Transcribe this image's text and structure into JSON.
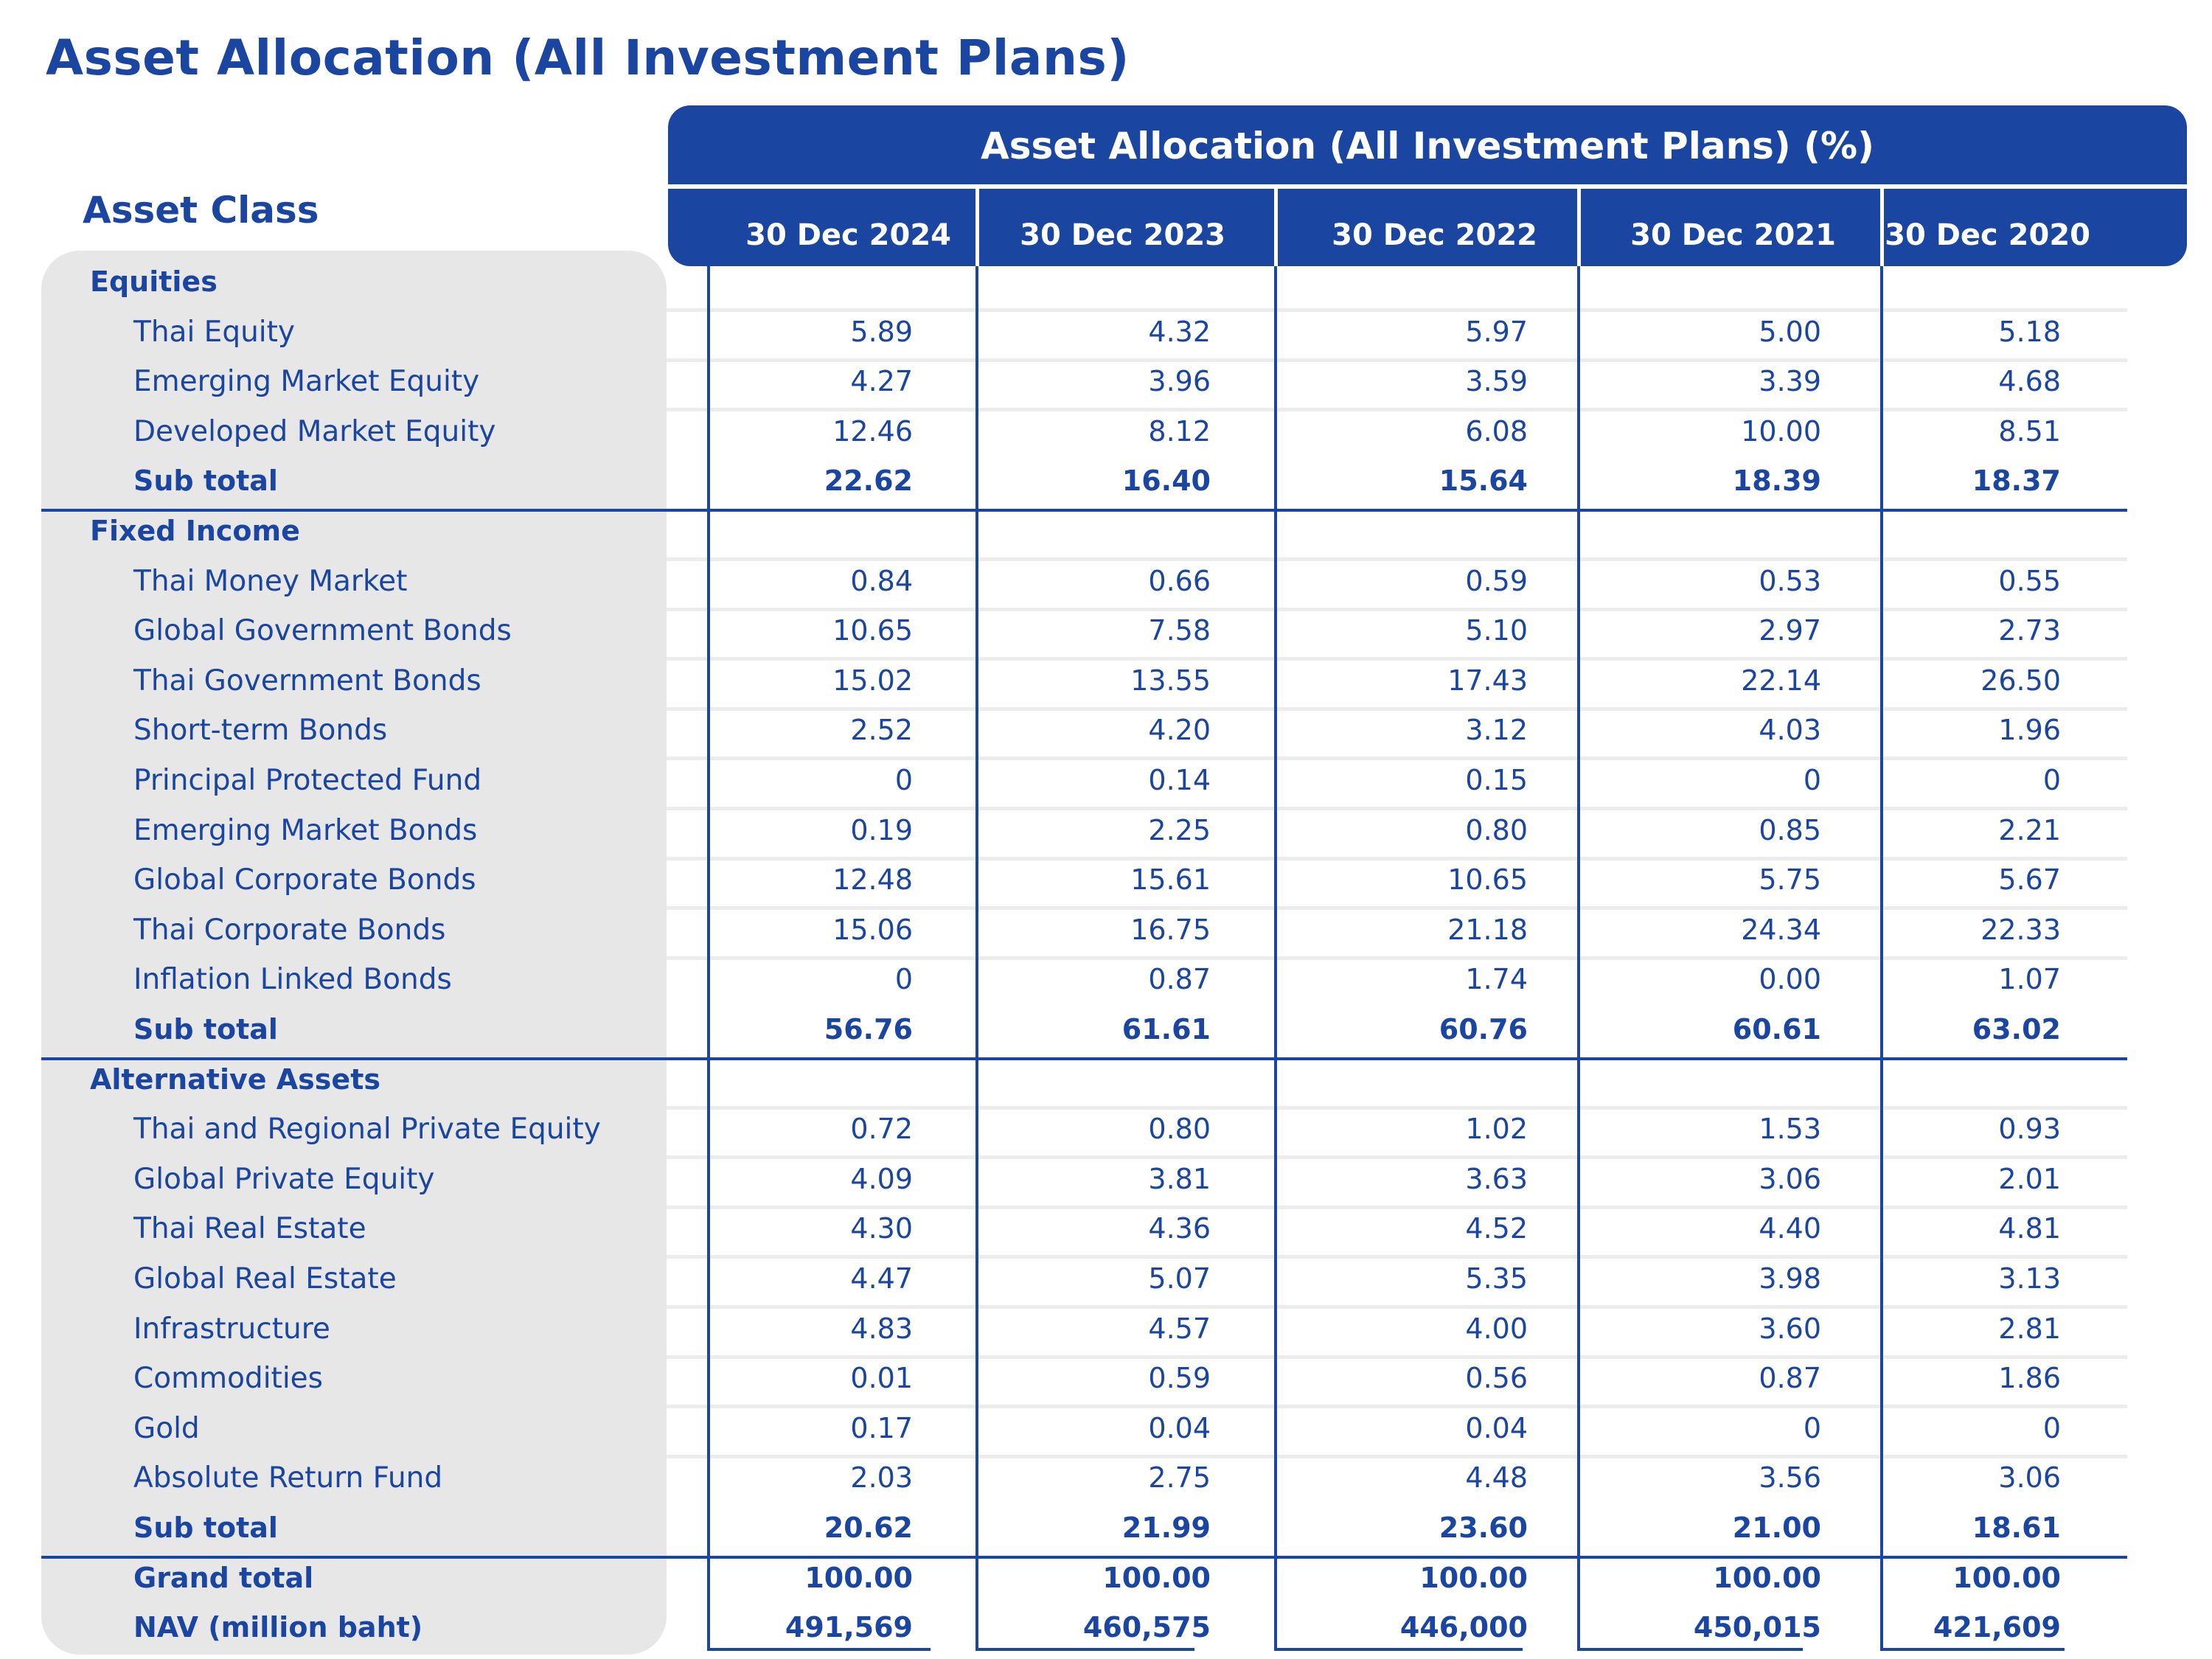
{
  "title": "Asset Allocation (All Investment Plans)",
  "table": {
    "header_title": "Asset Allocation (All Investment Plans) (%)",
    "asset_class_label": "Asset Class",
    "columns": [
      "30 Dec 2024",
      "30 Dec 2023",
      "30 Dec 2022",
      "30 Dec 2021",
      "30 Dec 2020"
    ],
    "sections": [
      {
        "name": "Equities",
        "rows": [
          {
            "label": "Thai Equity",
            "values": [
              "5.89",
              "4.32",
              "5.97",
              "5.00",
              "5.18"
            ]
          },
          {
            "label": "Emerging Market Equity",
            "values": [
              "4.27",
              "3.96",
              "3.59",
              "3.39",
              "4.68"
            ]
          },
          {
            "label": "Developed Market Equity",
            "values": [
              "12.46",
              "8.12",
              "6.08",
              "10.00",
              "8.51"
            ]
          }
        ],
        "subtotal": {
          "label": "Sub total",
          "values": [
            "22.62",
            "16.40",
            "15.64",
            "18.39",
            "18.37"
          ]
        }
      },
      {
        "name": "Fixed Income",
        "rows": [
          {
            "label": "Thai Money Market",
            "values": [
              "0.84",
              "0.66",
              "0.59",
              "0.53",
              "0.55"
            ]
          },
          {
            "label": "Global Government Bonds",
            "values": [
              "10.65",
              "7.58",
              "5.10",
              "2.97",
              "2.73"
            ]
          },
          {
            "label": "Thai Government Bonds",
            "values": [
              "15.02",
              "13.55",
              "17.43",
              "22.14",
              "26.50"
            ]
          },
          {
            "label": "Short-term Bonds",
            "values": [
              "2.52",
              "4.20",
              "3.12",
              "4.03",
              "1.96"
            ]
          },
          {
            "label": "Principal Protected Fund",
            "values": [
              "0",
              "0.14",
              "0.15",
              "0",
              "0"
            ]
          },
          {
            "label": "Emerging Market Bonds",
            "values": [
              "0.19",
              "2.25",
              "0.80",
              "0.85",
              "2.21"
            ]
          },
          {
            "label": "Global Corporate Bonds",
            "values": [
              "12.48",
              "15.61",
              "10.65",
              "5.75",
              "5.67"
            ]
          },
          {
            "label": "Thai Corporate Bonds",
            "values": [
              "15.06",
              "16.75",
              "21.18",
              "24.34",
              "22.33"
            ]
          },
          {
            "label": "Inflation Linked Bonds",
            "values": [
              "0",
              "0.87",
              "1.74",
              "0.00",
              "1.07"
            ]
          }
        ],
        "subtotal": {
          "label": "Sub total",
          "values": [
            "56.76",
            "61.61",
            "60.76",
            "60.61",
            "63.02"
          ]
        }
      },
      {
        "name": "Alternative Assets",
        "rows": [
          {
            "label": "Thai and Regional Private Equity",
            "values": [
              "0.72",
              "0.80",
              "1.02",
              "1.53",
              "0.93"
            ]
          },
          {
            "label": "Global Private Equity",
            "values": [
              "4.09",
              "3.81",
              "3.63",
              "3.06",
              "2.01"
            ]
          },
          {
            "label": "Thai Real Estate",
            "values": [
              "4.30",
              "4.36",
              "4.52",
              "4.40",
              "4.81"
            ]
          },
          {
            "label": "Global Real Estate",
            "values": [
              "4.47",
              "5.07",
              "5.35",
              "3.98",
              "3.13"
            ]
          },
          {
            "label": "Infrastructure",
            "values": [
              "4.83",
              "4.57",
              "4.00",
              "3.60",
              "2.81"
            ]
          },
          {
            "label": "Commodities",
            "values": [
              "0.01",
              "0.59",
              "0.56",
              "0.87",
              "1.86"
            ]
          },
          {
            "label": "Gold",
            "values": [
              "0.17",
              "0.04",
              "0.04",
              "0",
              "0"
            ]
          },
          {
            "label": "Absolute Return Fund",
            "values": [
              "2.03",
              "2.75",
              "4.48",
              "3.56",
              "3.06"
            ]
          }
        ],
        "subtotal": {
          "label": "Sub total",
          "values": [
            "20.62",
            "21.99",
            "23.60",
            "21.00",
            "18.61"
          ]
        }
      }
    ],
    "grand_total": {
      "label": "Grand total",
      "values": [
        "100.00",
        "100.00",
        "100.00",
        "100.00",
        "100.00"
      ]
    },
    "nav": {
      "label": "NAV (million baht)",
      "values": [
        "491,569",
        "460,575",
        "446,000",
        "450,015",
        "421,609"
      ]
    }
  },
  "colors": {
    "primary_blue": "#1a45a0",
    "panel_gray": "#e7e7e7",
    "row_separator": "#ececec"
  }
}
